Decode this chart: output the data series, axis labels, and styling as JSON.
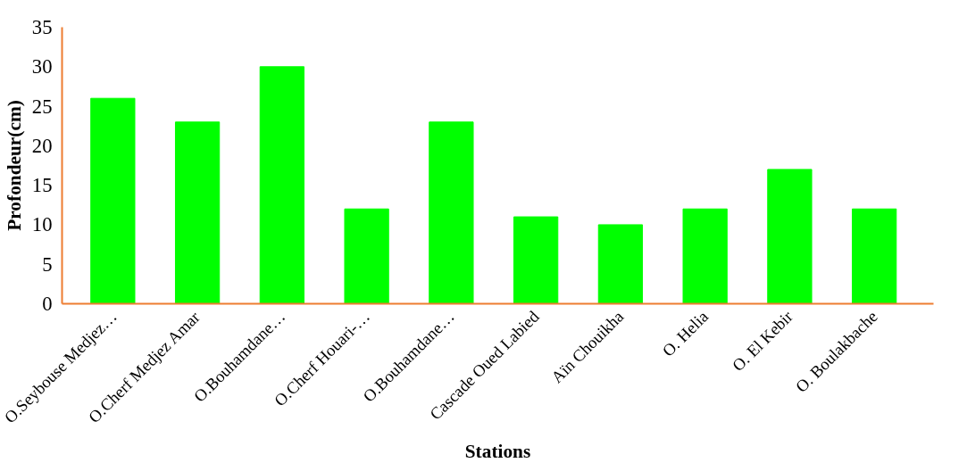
{
  "chart_data": {
    "type": "bar",
    "xlabel": "Stations",
    "ylabel": "Profondeur(cm)",
    "categories": [
      "O.Seybouse Medjez…",
      "O.Cherf Medjez Amar",
      "O.Bouhamdane…",
      "O.Cherf Houari-…",
      "O.Bouhamdane…",
      "Cascade Oued Labied",
      "Aïn Chouikha",
      "O. Helia",
      "O. El Kebir",
      "O. Boulakbache"
    ],
    "values": [
      26,
      23,
      30,
      12,
      23,
      11,
      10,
      12,
      17,
      12
    ],
    "color": "#00ff00",
    "ylim": [
      0,
      35
    ],
    "yticks": [
      0,
      5,
      10,
      15,
      20,
      25,
      30,
      35
    ],
    "grid": false
  }
}
